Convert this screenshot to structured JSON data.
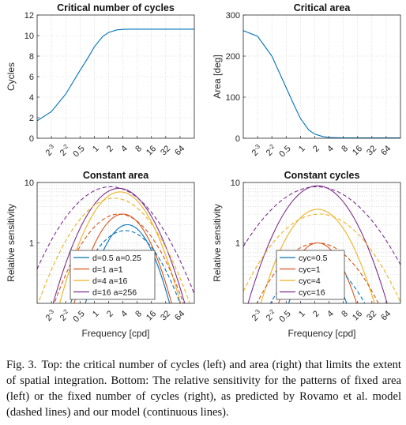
{
  "figure": {
    "caption_label": "Fig. 3.",
    "caption_text": "Top: the critical number of cycles (left) and area (right) that limits the extent of spatial integration. Bottom: The relative sensitivity for the patterns of fixed area (left) or the fixed number of cycles (right), as predicted by Rovamo et al. model (dashed lines) and our model (continuous lines)."
  },
  "chart_data": [
    {
      "type": "line",
      "title": "Critical number of cycles",
      "xlabel": "",
      "ylabel": "Cycles",
      "x_scale": "log2",
      "xlim": [
        0.0625,
        128
      ],
      "xticks": [
        {
          "v": 0.125,
          "base": "2",
          "exp": "-3"
        },
        {
          "v": 0.25,
          "base": "2",
          "exp": "-2"
        },
        {
          "v": 0.5,
          "label": "0.5"
        },
        {
          "v": 1,
          "label": "1"
        },
        {
          "v": 2,
          "label": "2"
        },
        {
          "v": 4,
          "label": "4"
        },
        {
          "v": 8,
          "label": "8"
        },
        {
          "v": 16,
          "label": "16"
        },
        {
          "v": 32,
          "label": "32"
        },
        {
          "v": 64,
          "label": "64"
        }
      ],
      "ylim": [
        0,
        12
      ],
      "yticks": [
        0,
        2,
        4,
        6,
        8,
        10,
        12
      ],
      "grid": true,
      "series": [
        {
          "color": "#0072BD",
          "dash": false,
          "x": [
            0.0625,
            0.125,
            0.25,
            0.5,
            0.75,
            1,
            1.5,
            2,
            3,
            4,
            6,
            8,
            16,
            32,
            64,
            128
          ],
          "y": [
            1.7,
            2.6,
            4.3,
            6.6,
            7.9,
            8.9,
            9.9,
            10.3,
            10.55,
            10.6,
            10.62,
            10.62,
            10.62,
            10.62,
            10.62,
            10.62
          ]
        }
      ]
    },
    {
      "type": "line",
      "title": "Critical area",
      "xlabel": "",
      "ylabel": "Area [deg]",
      "x_scale": "log2",
      "xlim": [
        0.0625,
        128
      ],
      "xticks": [
        {
          "v": 0.125,
          "base": "2",
          "exp": "-3"
        },
        {
          "v": 0.25,
          "base": "2",
          "exp": "-2"
        },
        {
          "v": 0.5,
          "label": "0.5"
        },
        {
          "v": 1,
          "label": "1"
        },
        {
          "v": 2,
          "label": "2"
        },
        {
          "v": 4,
          "label": "4"
        },
        {
          "v": 8,
          "label": "8"
        },
        {
          "v": 16,
          "label": "16"
        },
        {
          "v": 32,
          "label": "32"
        },
        {
          "v": 64,
          "label": "64"
        }
      ],
      "ylim": [
        0,
        300
      ],
      "yticks": [
        0,
        100,
        200,
        300
      ],
      "grid": true,
      "series": [
        {
          "color": "#0072BD",
          "dash": false,
          "x": [
            0.0625,
            0.125,
            0.25,
            0.5,
            0.75,
            1,
            1.5,
            2,
            3,
            4,
            8,
            16,
            32,
            64,
            128
          ],
          "y": [
            262,
            248,
            200,
            123,
            78,
            48,
            20,
            10,
            4,
            2,
            1,
            1,
            1,
            1,
            1
          ]
        }
      ]
    },
    {
      "type": "line",
      "title": "Constant area",
      "xlabel": "Frequency [cpd]",
      "ylabel": "Relative sensitivity",
      "x_scale": "log2",
      "y_scale": "log10",
      "xlim": [
        0.0625,
        128
      ],
      "xticks": [
        {
          "v": 0.125,
          "base": "2",
          "exp": "-3"
        },
        {
          "v": 0.25,
          "base": "2",
          "exp": "-2"
        },
        {
          "v": 0.5,
          "label": "0.5"
        },
        {
          "v": 1,
          "label": "1"
        },
        {
          "v": 2,
          "label": "2"
        },
        {
          "v": 4,
          "label": "4"
        },
        {
          "v": 8,
          "label": "8"
        },
        {
          "v": 16,
          "label": "16"
        },
        {
          "v": 32,
          "label": "32"
        },
        {
          "v": 64,
          "label": "64"
        }
      ],
      "ylim": [
        0.1,
        10
      ],
      "yticks": [
        {
          "v": 1,
          "label": "1"
        },
        {
          "v": 10,
          "label": "10"
        }
      ],
      "grid": true,
      "legend": "bottom-left",
      "series": [
        {
          "name": "d=0.5 a=0.25",
          "color": "#0072BD",
          "dash": false,
          "peak": 2.0,
          "fpeak": 5.0,
          "width": 1.7
        },
        {
          "name": "d=1 a=1",
          "color": "#D95319",
          "dash": false,
          "peak": 3.0,
          "fpeak": 4.0,
          "width": 1.85
        },
        {
          "name": "d=4 a=16",
          "color": "#EDB120",
          "dash": false,
          "peak": 7.0,
          "fpeak": 3.5,
          "width": 2.05
        },
        {
          "name": "d=16 a=256",
          "color": "#7E2F8E",
          "dash": false,
          "peak": 8.0,
          "fpeak": 3.3,
          "width": 2.2
        },
        {
          "color": "#0072BD",
          "dash": true,
          "peak": 1.6,
          "fpeak": 4.5,
          "width": 2.3
        },
        {
          "color": "#D95319",
          "dash": true,
          "peak": 3.0,
          "fpeak": 3.3,
          "width": 2.45
        },
        {
          "color": "#EDB120",
          "dash": true,
          "peak": 5.5,
          "fpeak": 2.6,
          "width": 2.65
        },
        {
          "color": "#7E2F8E",
          "dash": true,
          "peak": 8.5,
          "fpeak": 2.2,
          "width": 2.9
        }
      ]
    },
    {
      "type": "line",
      "title": "Constant cycles",
      "xlabel": "Frequency [cpd]",
      "ylabel": "Relative sensitivity",
      "x_scale": "log2",
      "y_scale": "log10",
      "xlim": [
        0.0625,
        128
      ],
      "xticks": [
        {
          "v": 0.125,
          "base": "2",
          "exp": "-3"
        },
        {
          "v": 0.25,
          "base": "2",
          "exp": "-2"
        },
        {
          "v": 0.5,
          "label": "0.5"
        },
        {
          "v": 1,
          "label": "1"
        },
        {
          "v": 2,
          "label": "2"
        },
        {
          "v": 4,
          "label": "4"
        },
        {
          "v": 8,
          "label": "8"
        },
        {
          "v": 16,
          "label": "16"
        },
        {
          "v": 32,
          "label": "32"
        },
        {
          "v": 64,
          "label": "64"
        }
      ],
      "ylim": [
        0.1,
        10
      ],
      "yticks": [
        {
          "v": 1,
          "label": "1"
        },
        {
          "v": 10,
          "label": "10"
        }
      ],
      "grid": true,
      "legend": "bottom-left",
      "series": [
        {
          "name": "cyc=0.5",
          "color": "#0072BD",
          "dash": false,
          "peak": 0.5,
          "fpeak": 2.3,
          "width": 1.6
        },
        {
          "name": "cyc=1",
          "color": "#D95319",
          "dash": false,
          "peak": 1.0,
          "fpeak": 2.3,
          "width": 1.8
        },
        {
          "name": "cyc=4",
          "color": "#EDB120",
          "dash": false,
          "peak": 3.6,
          "fpeak": 2.3,
          "width": 2.1
        },
        {
          "name": "cyc=16",
          "color": "#7E2F8E",
          "dash": false,
          "peak": 8.8,
          "fpeak": 2.3,
          "width": 2.3
        },
        {
          "color": "#0072BD",
          "dash": true,
          "peak": 0.5,
          "fpeak": 2.3,
          "width": 2.6
        },
        {
          "color": "#D95319",
          "dash": true,
          "peak": 1.0,
          "fpeak": 2.3,
          "width": 2.8
        },
        {
          "color": "#EDB120",
          "dash": true,
          "peak": 3.0,
          "fpeak": 2.5,
          "width": 3.1
        },
        {
          "color": "#7E2F8E",
          "dash": true,
          "peak": 8.5,
          "fpeak": 2.2,
          "width": 3.4
        }
      ]
    }
  ]
}
